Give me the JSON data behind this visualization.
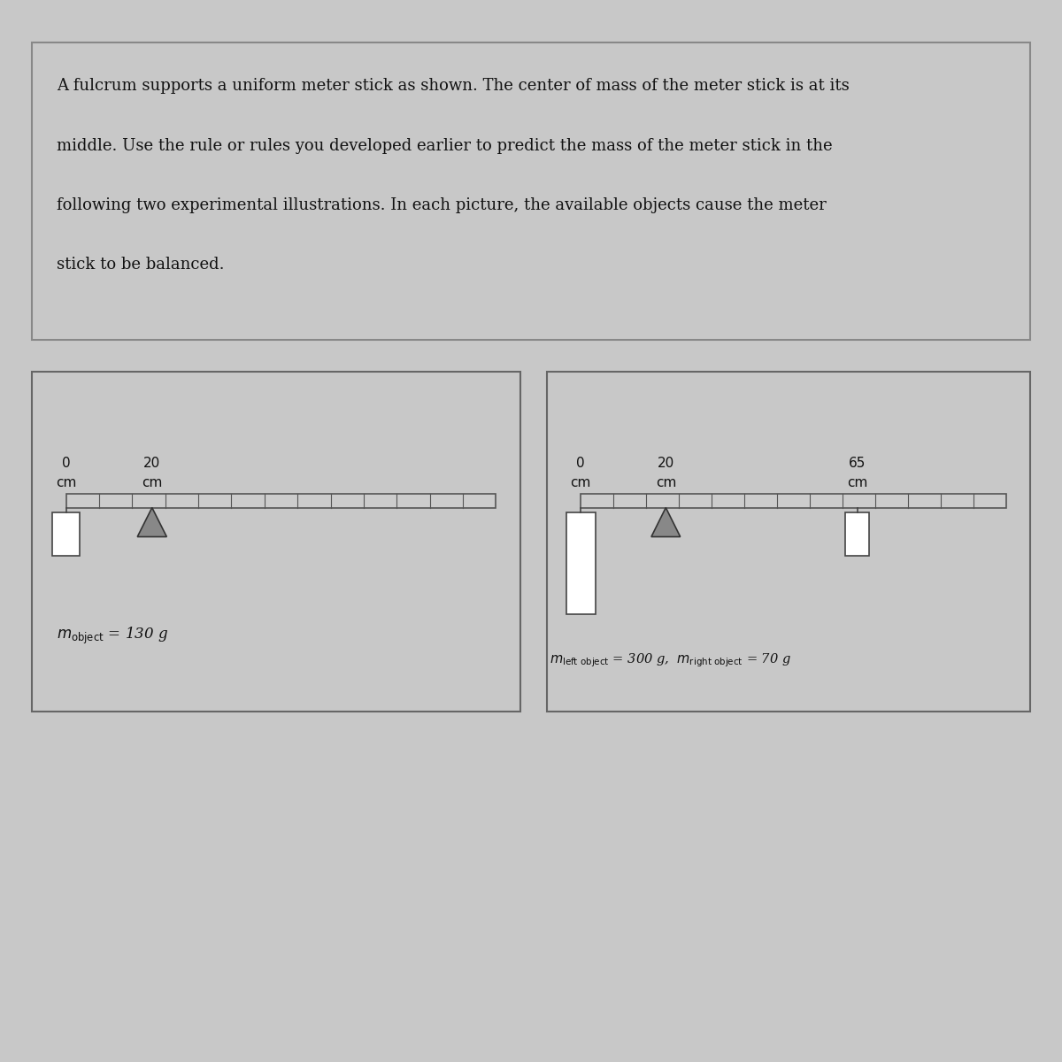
{
  "bg_color": "#c8c8c8",
  "text_box_bg": "#e8e8e8",
  "diag_box_bg": "#d8d8d8",
  "text_color": "#111111",
  "stick_color": "#cccccc",
  "stick_edge": "#555555",
  "object_color": "#ffffff",
  "object_edge": "#444444",
  "fulcrum_color": "#888888",
  "fulcrum_edge": "#333333",
  "paragraph_lines": [
    "A fulcrum supports a uniform meter stick as shown. The center of mass of the meter stick is at its",
    "middle. Use the rule or rules you developed earlier to predict the mass of the meter stick in the",
    "following two experimental illustrations. In each picture, the available objects cause the meter",
    "stick to be balanced."
  ],
  "diag1_labels": [
    "0",
    "20"
  ],
  "diag1_units": [
    "cm",
    "cm"
  ],
  "diag1_mass_text": "m",
  "diag1_mass_sub": "object",
  "diag1_mass_val": " = 130 g",
  "diag2_labels": [
    "0",
    "20",
    "65"
  ],
  "diag2_units": [
    "cm",
    "cm",
    "cm"
  ],
  "diag2_mass_left_text": "m",
  "diag2_mass_left_sub": "left object",
  "diag2_mass_left_val": " = 300 g,  ",
  "diag2_mass_right_text": "m",
  "diag2_mass_right_sub": "right object",
  "diag2_mass_right_val": " = 70 g"
}
